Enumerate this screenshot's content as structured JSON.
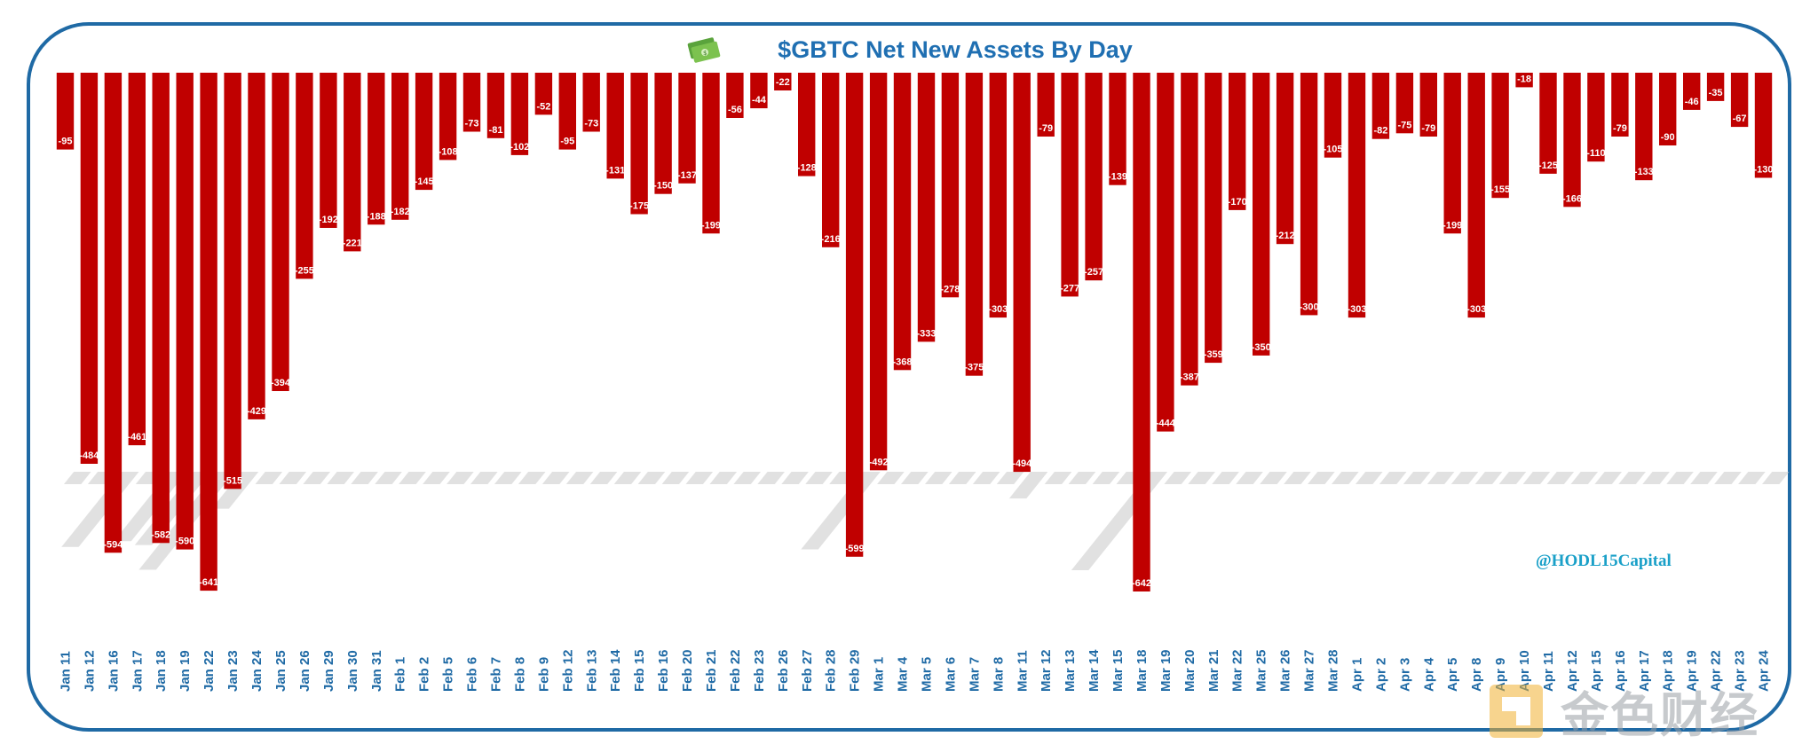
{
  "chart_data": {
    "type": "bar",
    "title": "$GBTC Net New Assets By Day",
    "xlabel": "",
    "ylabel": "",
    "ylim": [
      -642,
      0
    ],
    "grid": false,
    "legend": "none",
    "bar_color": "#c00000",
    "categories": [
      "Jan 11",
      "Jan 12",
      "Jan 16",
      "Jan 17",
      "Jan 18",
      "Jan 19",
      "Jan 22",
      "Jan 23",
      "Jan 24",
      "Jan 25",
      "Jan 26",
      "Jan 29",
      "Jan 30",
      "Jan 31",
      "Feb 1",
      "Feb 2",
      "Feb 5",
      "Feb 6",
      "Feb 7",
      "Feb 8",
      "Feb 9",
      "Feb 12",
      "Feb 13",
      "Feb 14",
      "Feb 15",
      "Feb 16",
      "Feb 20",
      "Feb 21",
      "Feb 22",
      "Feb 23",
      "Feb 26",
      "Feb 27",
      "Feb 28",
      "Feb 29",
      "Mar 1",
      "Mar 4",
      "Mar 5",
      "Mar 6",
      "Mar 7",
      "Mar 8",
      "Mar 11",
      "Mar 12",
      "Mar 13",
      "Mar 14",
      "Mar 15",
      "Mar 18",
      "Mar 19",
      "Mar 20",
      "Mar 21",
      "Mar 22",
      "Mar 25",
      "Mar 26",
      "Mar 27",
      "Mar 28",
      "Apr 1",
      "Apr 2",
      "Apr 3",
      "Apr 4",
      "Apr 5",
      "Apr 8",
      "Apr 9",
      "Apr 10",
      "Apr 11",
      "Apr 12",
      "Apr 15",
      "Apr 16",
      "Apr 17",
      "Apr 18",
      "Apr 19",
      "Apr 22",
      "Apr 23",
      "Apr 24"
    ],
    "values": [
      -95,
      -484,
      -594,
      -461,
      -582,
      -590,
      -641,
      -515,
      -429,
      -394,
      -255,
      -192,
      -221,
      -188,
      -182,
      -145,
      -108,
      -73,
      -81,
      -102,
      -52,
      -95,
      -73,
      -131,
      -175,
      -150,
      -137,
      -199,
      -56,
      -44,
      -22,
      -128,
      -216,
      -599,
      -492,
      -368,
      -333,
      -278,
      -375,
      -303,
      -494,
      -79,
      -277,
      -257,
      -139,
      -642,
      -444,
      -387,
      -359,
      -170,
      -350,
      -212,
      -300,
      -105,
      -303,
      -82,
      -75,
      -79,
      -199,
      -303,
      -155,
      -18,
      -125,
      -166,
      -110,
      -79,
      -133,
      -90,
      -46,
      -35,
      -67,
      -130
    ],
    "labels": [
      "-95",
      "-484",
      "-594",
      "-461",
      "-582",
      "-590",
      "-641",
      "-515",
      "-429",
      "-394",
      "-255",
      "-192",
      "-221",
      "-188",
      "-182",
      "-145",
      "-108",
      "-73",
      "-81",
      "-102",
      "-52",
      "-95",
      "-73",
      "-131",
      "-175",
      "-150",
      "-137",
      "-199",
      "-56",
      "-44",
      "-22",
      "-128",
      "-216",
      "-599",
      "-492",
      "-368",
      "-333",
      "-278",
      "-375",
      "-303",
      "-494",
      "-79",
      "-277",
      "-257",
      "-139",
      "-642",
      "-444",
      "-387",
      "-359",
      "-170",
      "-350",
      "-212",
      "-300",
      "-105",
      "-303",
      "-82",
      "-75",
      "-79",
      "-199",
      "-303",
      "-155",
      "-18",
      "-125",
      "-166",
      "-110",
      "-79",
      "-133",
      "-90",
      "-46",
      "-35",
      "-67",
      "-130"
    ]
  },
  "watermark": {
    "handle": "@HODL15Capital",
    "logo_text": "金色财经"
  },
  "icons": {
    "title_icon": "money-icon",
    "logo_icon": "jinse-logo-icon"
  },
  "colors": {
    "frame": "#1f6aa5",
    "title": "#1f6fb2",
    "tick": "#1f6aa5",
    "handle": "#1aa0c8"
  }
}
